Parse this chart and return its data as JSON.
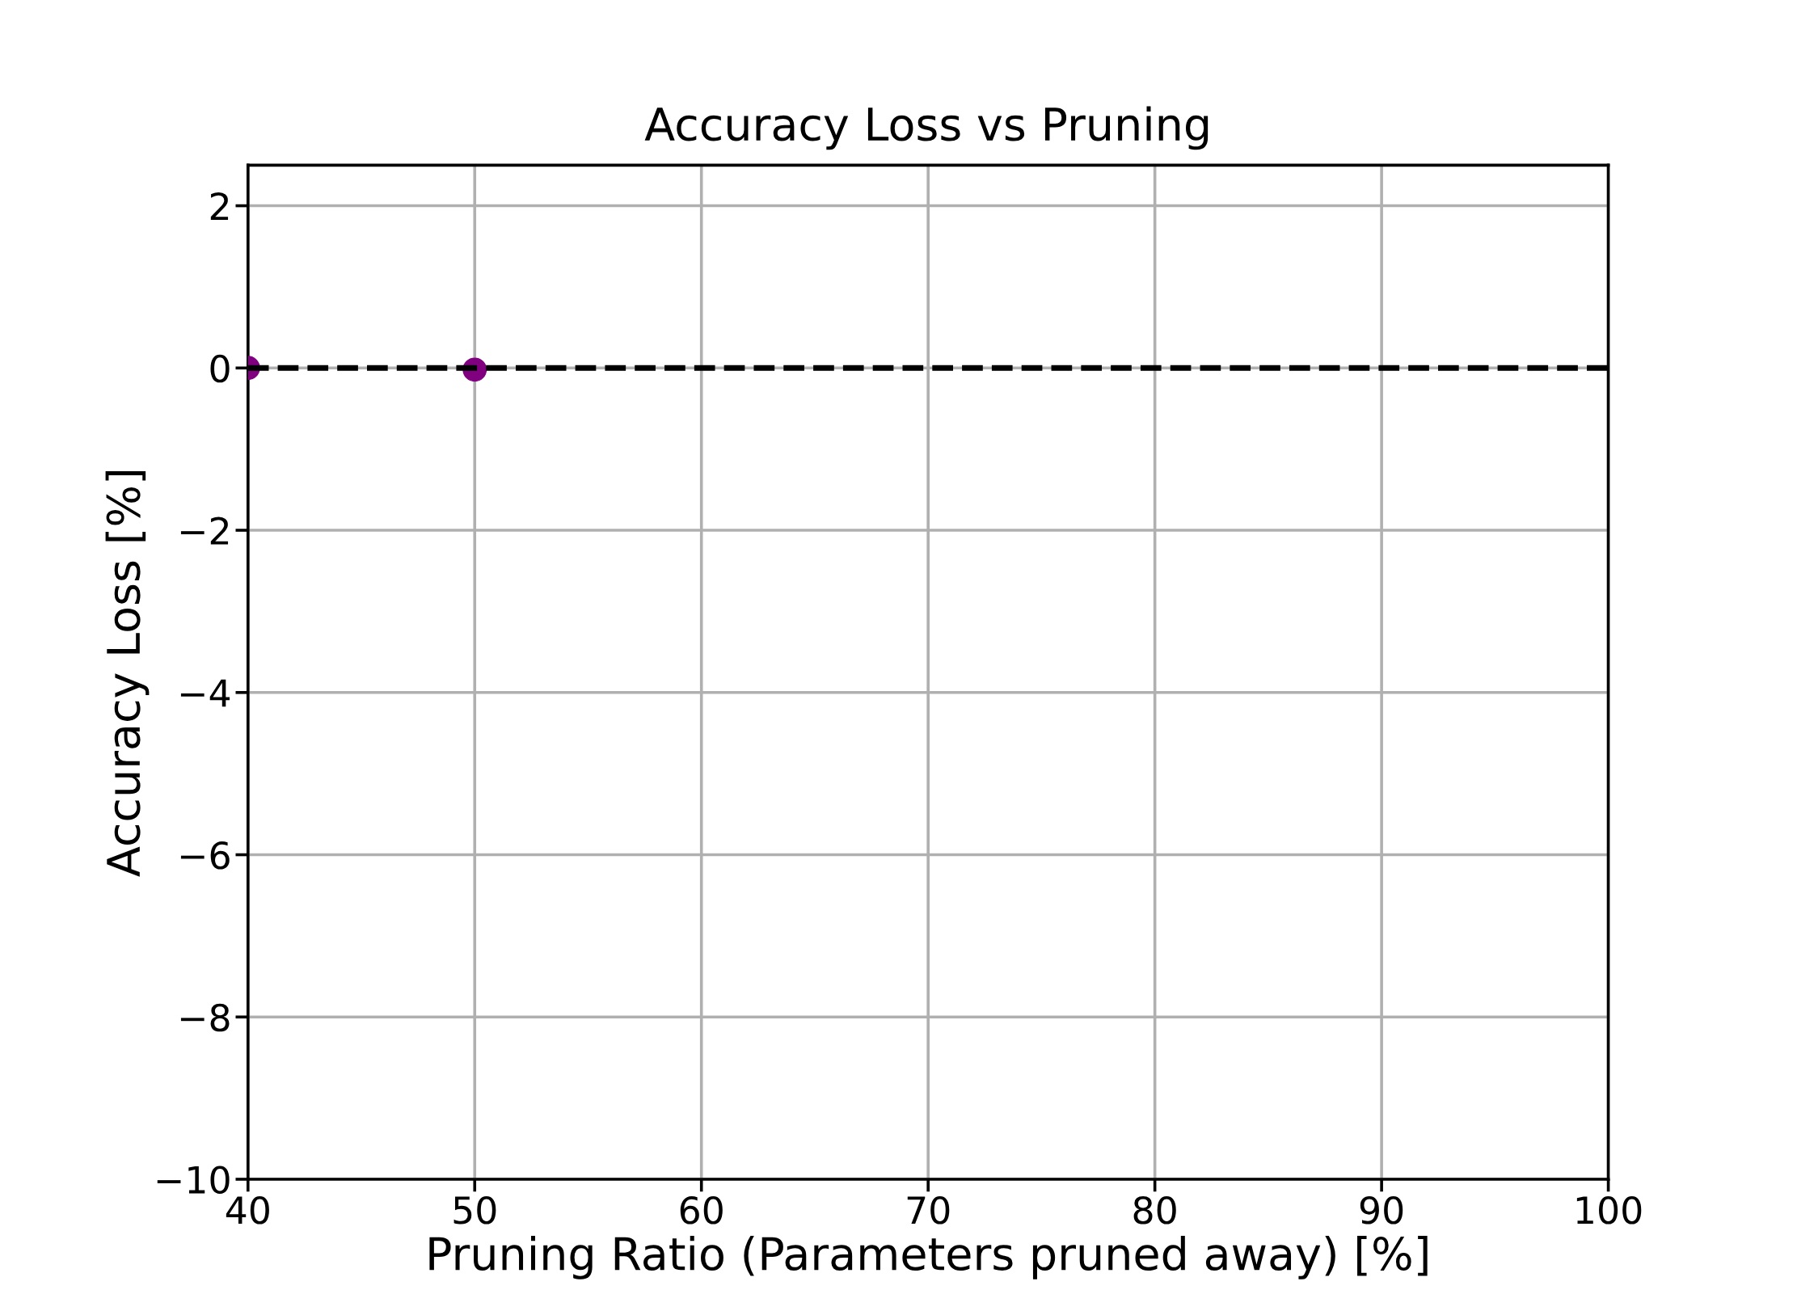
{
  "chart_data": {
    "type": "scatter",
    "title": "Accuracy Loss vs Pruning",
    "xlabel": "Pruning Ratio (Parameters pruned away) [%]",
    "ylabel": "Accuracy Loss [%]",
    "x": [
      40,
      50
    ],
    "series": [
      {
        "color": "#800080",
        "values": [
          0,
          -0.02
        ]
      }
    ],
    "marker": "circle",
    "ref_lines": [
      {
        "axis": "y",
        "value": 0,
        "color": "#000000",
        "line_style": "dashed"
      }
    ],
    "xlim": [
      40,
      100
    ],
    "xticks": [
      40,
      50,
      60,
      70,
      80,
      90,
      100
    ],
    "ylim": [
      -10,
      2.5
    ],
    "yticks": [
      {
        "value": -10,
        "label": "−10"
      },
      {
        "value": -8,
        "label": "−8"
      },
      {
        "value": -6,
        "label": "−6"
      },
      {
        "value": -4,
        "label": "−4"
      },
      {
        "value": -2,
        "label": "−2"
      },
      0,
      2
    ],
    "grid": true
  }
}
